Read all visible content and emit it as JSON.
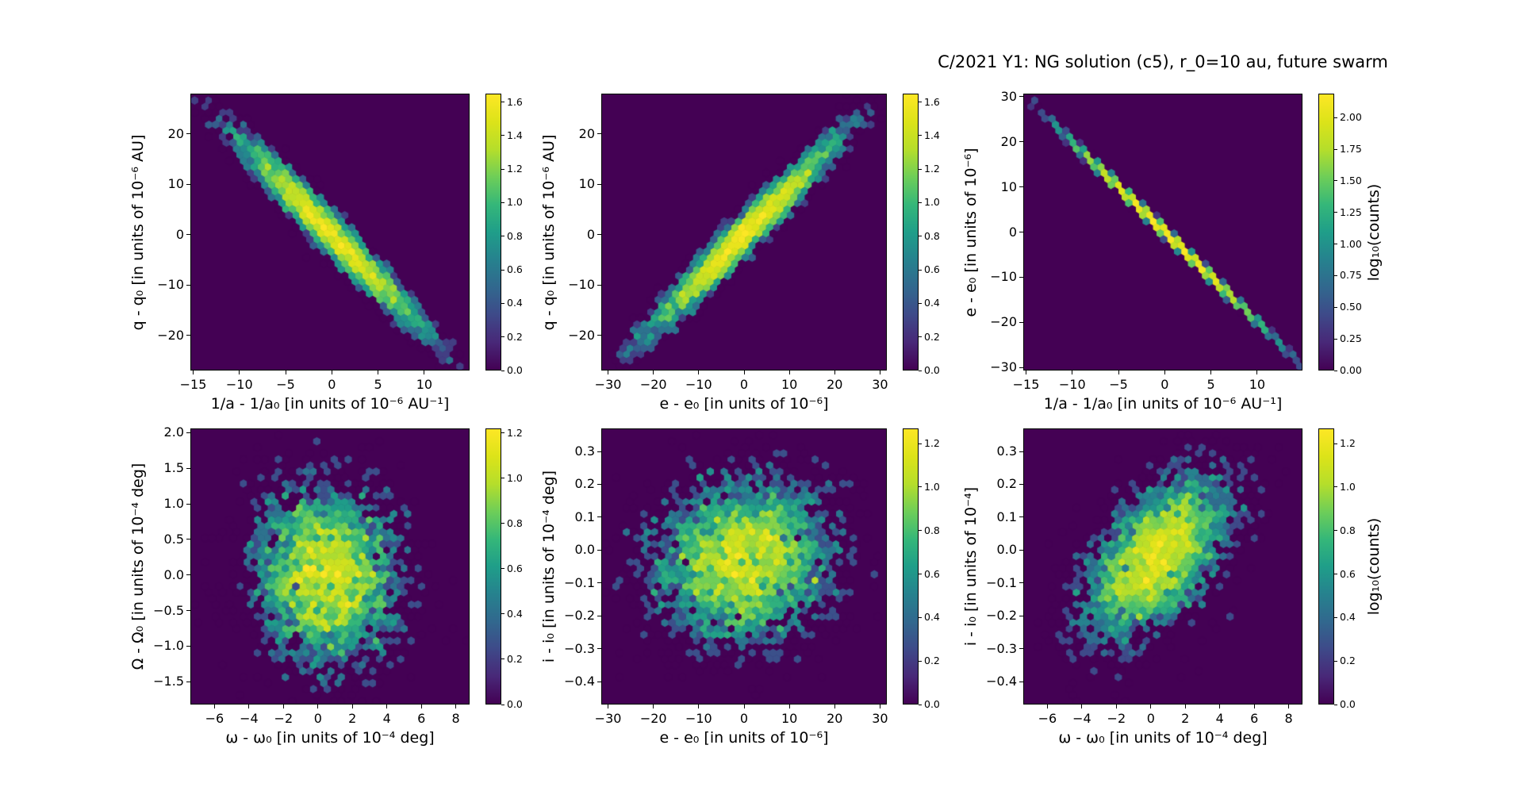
{
  "figure": {
    "title": "C/2021 Y1: NG solution (c5), r_0=10 au, future swarm",
    "background": "#ffffff",
    "text_color": "#000000",
    "colormap": "viridis",
    "viridis_stops": [
      "#440154",
      "#482878",
      "#3e4a89",
      "#31688e",
      "#26828e",
      "#1f9e89",
      "#35b779",
      "#6ece58",
      "#b5de2b",
      "#dce319",
      "#fde725"
    ]
  },
  "chart_data": [
    {
      "type": "hexbin",
      "position": "top-left",
      "xlabel": "1/a - 1/a₀ [in units of 10⁻⁶ AU⁻¹]",
      "ylabel": "q - q₀ [in units of 10⁻⁶ AU]",
      "xlim": [
        -15.3,
        14.9
      ],
      "ylim": [
        -27.0,
        28.0
      ],
      "xtick_values": [
        -15,
        -10,
        -5,
        0,
        5,
        10
      ],
      "xtick_labels": [
        "−15",
        "−10",
        "−5",
        "0",
        "5",
        "10"
      ],
      "ytick_values": [
        20,
        10,
        0,
        -10,
        -20
      ],
      "ytick_labels": [
        "20",
        "10",
        "0",
        "−10",
        "−20"
      ],
      "colorbar": {
        "vmax": 1.65,
        "tick_values": [
          0,
          0.2,
          0.4,
          0.6,
          0.8,
          1.0,
          1.2,
          1.4,
          1.6
        ],
        "tick_labels": [
          "0.0",
          "0.2",
          "0.4",
          "0.6",
          "0.8",
          "1.0",
          "1.2",
          "1.4",
          "1.6"
        ],
        "label": ""
      },
      "distribution": {
        "center": [
          0,
          0
        ],
        "sigma_x": 5.0,
        "sigma_y": 9.6,
        "correlation": -0.975,
        "n_points": 4200
      }
    },
    {
      "type": "hexbin",
      "position": "top-middle",
      "xlabel": "e - e₀ [in units of 10⁻⁶]",
      "ylabel": "q - q₀ [in units of 10⁻⁶ AU]",
      "xlim": [
        -31.5,
        31.5
      ],
      "ylim": [
        -27.0,
        28.0
      ],
      "xtick_values": [
        -30,
        -20,
        -10,
        0,
        10,
        20,
        30
      ],
      "xtick_labels": [
        "−30",
        "−20",
        "−10",
        "0",
        "10",
        "20",
        "30"
      ],
      "ytick_values": [
        20,
        10,
        0,
        -10,
        -20
      ],
      "ytick_labels": [
        "20",
        "10",
        "0",
        "−10",
        "−20"
      ],
      "colorbar": {
        "vmax": 1.65,
        "tick_values": [
          0,
          0.2,
          0.4,
          0.6,
          0.8,
          1.0,
          1.2,
          1.4,
          1.6
        ],
        "tick_labels": [
          "0.0",
          "0.2",
          "0.4",
          "0.6",
          "0.8",
          "1.0",
          "1.2",
          "1.4",
          "1.6"
        ],
        "label": ""
      },
      "distribution": {
        "center": [
          0,
          0
        ],
        "sigma_x": 10.3,
        "sigma_y": 9.6,
        "correlation": 0.975,
        "n_points": 4200
      }
    },
    {
      "type": "hexbin",
      "position": "top-right",
      "xlabel": "1/a - 1/a₀ [in units of 10⁻⁶ AU⁻¹]",
      "ylabel": "e - e₀ [in units of 10⁻⁶]",
      "xlim": [
        -15.3,
        14.9
      ],
      "ylim": [
        -30.7,
        30.7
      ],
      "xtick_values": [
        -15,
        -10,
        -5,
        0,
        5,
        10
      ],
      "xtick_labels": [
        "−15",
        "−10",
        "−5",
        "0",
        "5",
        "10"
      ],
      "ytick_values": [
        30,
        20,
        10,
        0,
        -10,
        -20,
        -30
      ],
      "ytick_labels": [
        "30",
        "20",
        "10",
        "0",
        "−10",
        "−20",
        "−30"
      ],
      "colorbar": {
        "vmax": 2.19,
        "tick_values": [
          0,
          0.25,
          0.5,
          0.75,
          1.0,
          1.25,
          1.5,
          1.75,
          2.0
        ],
        "tick_labels": [
          "0.00",
          "0.25",
          "0.50",
          "0.75",
          "1.00",
          "1.25",
          "1.50",
          "1.75",
          "2.00"
        ],
        "label": "log₁₀(counts)"
      },
      "distribution": {
        "center": [
          0,
          0
        ],
        "sigma_x": 5.0,
        "sigma_y": 10.0,
        "correlation": -0.9995,
        "n_points": 4200
      }
    },
    {
      "type": "hexbin",
      "position": "bottom-left",
      "xlabel": "ω - ω₀ [in units of 10⁻⁴ deg]",
      "ylabel": "Ω - Ω₀ [in units of 10⁻⁴ deg]",
      "xlim": [
        -7.4,
        8.8
      ],
      "ylim": [
        -1.82,
        2.06
      ],
      "xtick_values": [
        -6,
        -4,
        -2,
        0,
        2,
        4,
        6,
        8
      ],
      "xtick_labels": [
        "−6",
        "−4",
        "−2",
        "0",
        "2",
        "4",
        "6",
        "8"
      ],
      "ytick_values": [
        2.0,
        1.5,
        1.0,
        0.5,
        0.0,
        -0.5,
        -1.0,
        -1.5
      ],
      "ytick_labels": [
        "2.0",
        "1.5",
        "1.0",
        "0.5",
        "0.0",
        "−0.5",
        "−1.0",
        "−1.5"
      ],
      "colorbar": {
        "vmax": 1.22,
        "tick_values": [
          0,
          0.2,
          0.4,
          0.6,
          0.8,
          1.0,
          1.2
        ],
        "tick_labels": [
          "0.0",
          "0.2",
          "0.4",
          "0.6",
          "0.8",
          "1.0",
          "1.2"
        ],
        "label": ""
      },
      "distribution": {
        "center": [
          0.5,
          0
        ],
        "sigma_x": 2.1,
        "sigma_y": 0.62,
        "correlation": -0.05,
        "n_points": 4200
      }
    },
    {
      "type": "hexbin",
      "position": "bottom-middle",
      "xlabel": "e - e₀ [in units of 10⁻⁶]",
      "ylabel": "i - i₀ [in units of 10⁻⁴ deg]",
      "xlim": [
        -31.5,
        31.5
      ],
      "ylim": [
        -0.47,
        0.37
      ],
      "xtick_values": [
        -30,
        -20,
        -10,
        0,
        10,
        20,
        30
      ],
      "xtick_labels": [
        "−30",
        "−20",
        "−10",
        "0",
        "10",
        "20",
        "30"
      ],
      "ytick_values": [
        0.3,
        0.2,
        0.1,
        0.0,
        -0.1,
        -0.2,
        -0.3,
        -0.4
      ],
      "ytick_labels": [
        "0.3",
        "0.2",
        "0.1",
        "0.0",
        "−0.1",
        "−0.2",
        "−0.3",
        "−0.4"
      ],
      "colorbar": {
        "vmax": 1.27,
        "tick_values": [
          0,
          0.2,
          0.4,
          0.6,
          0.8,
          1.0,
          1.2
        ],
        "tick_labels": [
          "0.0",
          "0.2",
          "0.4",
          "0.6",
          "0.8",
          "1.0",
          "1.2"
        ],
        "label": ""
      },
      "distribution": {
        "center": [
          0,
          -0.03
        ],
        "sigma_x": 10.0,
        "sigma_y": 0.125,
        "correlation": 0.1,
        "n_points": 4200
      }
    },
    {
      "type": "hexbin",
      "position": "bottom-right",
      "xlabel": "ω - ω₀ [in units of 10⁻⁴ deg]",
      "ylabel": "i - i₀ [in units of 10⁻⁴]",
      "xlim": [
        -7.4,
        8.8
      ],
      "ylim": [
        -0.47,
        0.37
      ],
      "xtick_values": [
        -6,
        -4,
        -2,
        0,
        2,
        4,
        6,
        8
      ],
      "xtick_labels": [
        "−6",
        "−4",
        "−2",
        "0",
        "2",
        "4",
        "6",
        "8"
      ],
      "ytick_values": [
        0.3,
        0.2,
        0.1,
        0.0,
        -0.1,
        -0.2,
        -0.3,
        -0.4
      ],
      "ytick_labels": [
        "0.3",
        "0.2",
        "0.1",
        "0.0",
        "−0.1",
        "−0.2",
        "−0.3",
        "−0.4"
      ],
      "colorbar": {
        "vmax": 1.27,
        "tick_values": [
          0,
          0.2,
          0.4,
          0.6,
          0.8,
          1.0,
          1.2
        ],
        "tick_labels": [
          "0.0",
          "0.2",
          "0.4",
          "0.6",
          "0.8",
          "1.0",
          "1.2"
        ],
        "label": "log₁₀(counts)"
      },
      "distribution": {
        "center": [
          0.3,
          -0.02
        ],
        "sigma_x": 2.1,
        "sigma_y": 0.125,
        "correlation": 0.55,
        "n_points": 4200
      }
    }
  ]
}
